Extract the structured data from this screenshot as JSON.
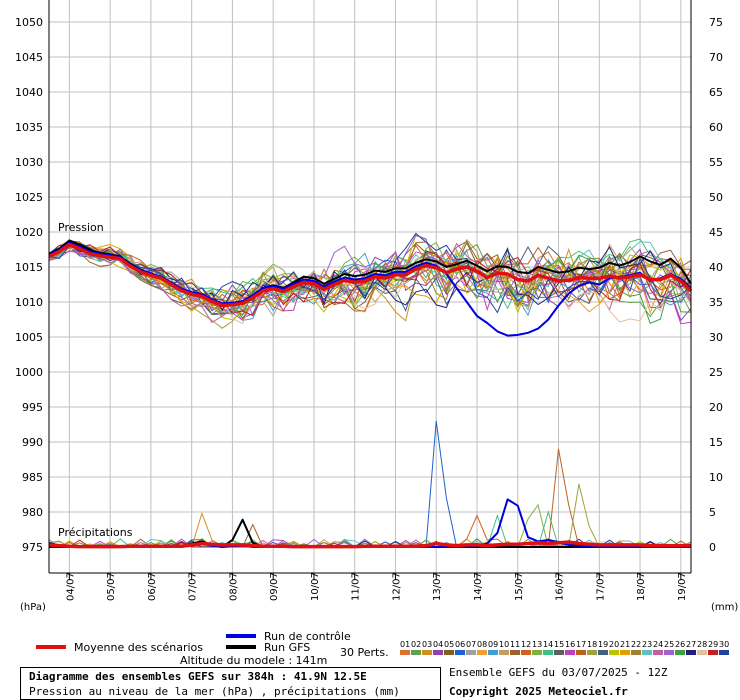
{
  "chart_data": {
    "type": "line",
    "pressure_label": "Pression",
    "precip_label": "Précipitations",
    "left_unit": "(hPa)",
    "right_unit": "(mm)",
    "pressure_ylim": [
      970,
      1050
    ],
    "pressure_ticks": [
      975,
      980,
      985,
      990,
      995,
      1000,
      1005,
      1010,
      1015,
      1020,
      1025,
      1030,
      1035,
      1040,
      1045,
      1050
    ],
    "precip_ticks": [
      0,
      5,
      10,
      15,
      20,
      25,
      30,
      35,
      40,
      45,
      50,
      55,
      60,
      65,
      70,
      75
    ],
    "x_labels": [
      "04/07",
      "05/07",
      "06/07",
      "07/07",
      "08/07",
      "09/07",
      "10/07",
      "11/07",
      "12/07",
      "13/07",
      "14/07",
      "15/07",
      "16/07",
      "17/07",
      "18/07",
      "19/07"
    ],
    "x_step_hours": 6,
    "x_start": "03/07 12Z",
    "mean_pressure": [
      1016.5,
      1017.2,
      1018.2,
      1017.6,
      1016.9,
      1016.6,
      1016.4,
      1016.2,
      1015.1,
      1014.3,
      1013.8,
      1013.4,
      1012.5,
      1011.6,
      1011.1,
      1010.8,
      1010.1,
      1009.5,
      1009.6,
      1009.8,
      1010.6,
      1011.6,
      1011.9,
      1011.5,
      1012.2,
      1012.8,
      1012.6,
      1011.8,
      1012.5,
      1013.1,
      1012.8,
      1013.0,
      1013.6,
      1013.4,
      1013.9,
      1013.9,
      1014.7,
      1015.2,
      1014.9,
      1014.2,
      1014.7,
      1015.0,
      1014.4,
      1013.5,
      1014.1,
      1014.0,
      1013.2,
      1013.0,
      1013.8,
      1013.4,
      1013.0,
      1013.1,
      1013.5,
      1013.4,
      1013.4,
      1013.7,
      1013.4,
      1013.6,
      1013.9,
      1013.2,
      1013.2,
      1013.8,
      1013.0,
      1011.6
    ],
    "control_pressure": [
      1016.8,
      1017.4,
      1018.5,
      1017.9,
      1017.2,
      1016.9,
      1016.7,
      1016.4,
      1015.3,
      1014.6,
      1014.1,
      1013.6,
      1012.8,
      1011.9,
      1011.4,
      1011.1,
      1010.4,
      1009.8,
      1009.9,
      1010.1,
      1011.0,
      1012.0,
      1012.3,
      1011.9,
      1012.6,
      1013.2,
      1013.0,
      1012.2,
      1012.9,
      1013.5,
      1013.2,
      1013.4,
      1014.0,
      1013.8,
      1014.3,
      1014.3,
      1015.1,
      1015.6,
      1015.2,
      1014.0,
      1012.0,
      1010.0,
      1008.0,
      1007.0,
      1005.8,
      1005.2,
      1005.3,
      1005.6,
      1006.2,
      1007.5,
      1009.5,
      1011.2,
      1012.3,
      1012.8,
      1012.5,
      1013.4,
      1013.6,
      1013.8,
      1014.2,
      1013.0,
      1013.4,
      1014.0,
      1013.3,
      1012.0
    ],
    "gfs_pressure": [
      1016.9,
      1017.6,
      1018.8,
      1018.2,
      1017.5,
      1017.0,
      1016.8,
      1016.5,
      1015.4,
      1014.6,
      1014.0,
      1013.5,
      1012.7,
      1011.8,
      1011.2,
      1010.9,
      1010.2,
      1009.6,
      1009.8,
      1010.1,
      1010.9,
      1012.0,
      1012.4,
      1012.0,
      1012.8,
      1013.6,
      1013.4,
      1012.6,
      1013.3,
      1014.0,
      1013.7,
      1013.9,
      1014.5,
      1014.3,
      1014.8,
      1014.8,
      1015.6,
      1016.1,
      1015.8,
      1015.0,
      1015.4,
      1015.9,
      1015.2,
      1014.4,
      1015.1,
      1015.0,
      1014.3,
      1014.1,
      1015.0,
      1014.6,
      1014.2,
      1014.4,
      1014.9,
      1014.7,
      1014.9,
      1015.6,
      1015.2,
      1015.7,
      1016.5,
      1015.8,
      1015.3,
      1016.2,
      1014.9,
      1012.6
    ],
    "control_precip": [
      0.6,
      0.2,
      0.1,
      0,
      0,
      0,
      0,
      0,
      0,
      0,
      0,
      0,
      0,
      0,
      0.3,
      0.5,
      0.2,
      0,
      0.1,
      0.2,
      0,
      0,
      0,
      0,
      0,
      0,
      0,
      0,
      0,
      0,
      0,
      0,
      0,
      0,
      0,
      0,
      0,
      0,
      0,
      0,
      0,
      0,
      0.2,
      0.5,
      2.0,
      6.8,
      5.9,
      1.4,
      0.8,
      1.0,
      0.7,
      0.3,
      0.2,
      0.1,
      0,
      0,
      0,
      0,
      0,
      0,
      0,
      0,
      0,
      0
    ],
    "gfs_precip": [
      0,
      0,
      0,
      0,
      0,
      0,
      0,
      0,
      0,
      0,
      0,
      0,
      0,
      0,
      0.5,
      0.8,
      0.3,
      0,
      1.0,
      3.9,
      0.6,
      0,
      0,
      0,
      0,
      0,
      0,
      0,
      0,
      0,
      0,
      0,
      0,
      0,
      0,
      0,
      0,
      0,
      0,
      0,
      0,
      0,
      0,
      0,
      0,
      0,
      0,
      0,
      0,
      0,
      0,
      0,
      0,
      0,
      0,
      0,
      0,
      0,
      0,
      0,
      0,
      0,
      0,
      0
    ],
    "mean_precip": [
      0.3,
      0.2,
      0.1,
      0.05,
      0.05,
      0.05,
      0.05,
      0.05,
      0.1,
      0.1,
      0.1,
      0.1,
      0.1,
      0.1,
      0.3,
      0.5,
      0.4,
      0.3,
      0.3,
      0.3,
      0.2,
      0.1,
      0.1,
      0.1,
      0.05,
      0.05,
      0.05,
      0.05,
      0.05,
      0.05,
      0.05,
      0.1,
      0.1,
      0.1,
      0.1,
      0.1,
      0.1,
      0.2,
      0.5,
      0.3,
      0.2,
      0.3,
      0.3,
      0.2,
      0.3,
      0.4,
      0.4,
      0.5,
      0.6,
      0.5,
      0.6,
      0.7,
      0.5,
      0.4,
      0.3,
      0.3,
      0.3,
      0.3,
      0.3,
      0.2,
      0.2,
      0.2,
      0.2,
      0.2
    ],
    "perturbation_colors": [
      "#e07030",
      "#60a050",
      "#d09020",
      "#9040b0",
      "#806020",
      "#2060d0",
      "#a0a0a0",
      "#f0a030",
      "#40a0d0",
      "#c0a060",
      "#a06030",
      "#d06020",
      "#80b040",
      "#40c080",
      "#606060",
      "#c040c0",
      "#c06020",
      "#a0a040",
      "#406080",
      "#c0c000",
      "#e0a000",
      "#a08030",
      "#60c0c0",
      "#c060a0",
      "#a060d0",
      "#40a040",
      "#202080",
      "#e0c0a0",
      "#c02020",
      "#2040a0"
    ],
    "perturbation_labels": [
      "01",
      "02",
      "03",
      "04",
      "05",
      "06",
      "07",
      "08",
      "09",
      "10",
      "11",
      "12",
      "13",
      "14",
      "15",
      "16",
      "17",
      "18",
      "19",
      "20",
      "21",
      "22",
      "23",
      "24",
      "25",
      "26",
      "27",
      "28",
      "29",
      "30"
    ]
  },
  "legend": {
    "mean_label": "Moyenne des scénarios",
    "control_label": "Run de contrôle",
    "gfs_label": "Run GFS",
    "perts_label": "30 Perts.",
    "mean_color": "#e01010",
    "control_color": "#0000e0",
    "gfs_color": "#000000"
  },
  "footer": {
    "altitude": "Altitude du modele : 141m",
    "title": "Diagramme des ensembles GEFS sur 384h : 41.9N 12.5E",
    "subtitle": "Pression au niveau de la mer (hPa) , précipitations (mm)",
    "run_info": "Ensemble GEFS du 03/07/2025 - 12Z",
    "copyright": "Copyright 2025 Meteociel.fr"
  }
}
